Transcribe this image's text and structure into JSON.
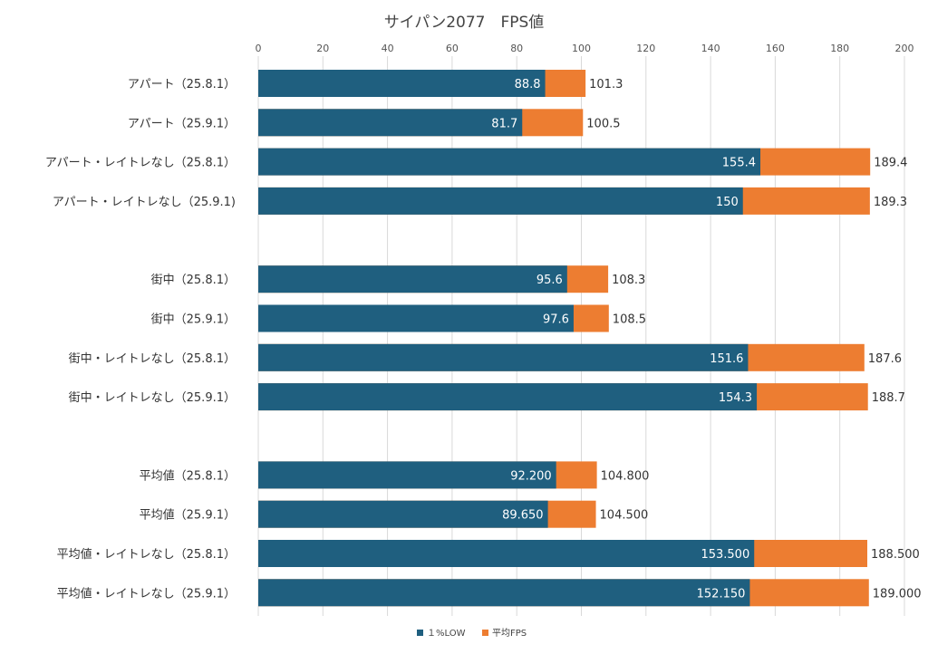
{
  "chart_data": {
    "type": "bar",
    "orientation": "horizontal",
    "title": "サイパン2077　FPS値",
    "xlabel": "",
    "ylabel": "",
    "xlim": [
      0,
      200
    ],
    "xticks": [
      "0",
      "20",
      "40",
      "60",
      "80",
      "100",
      "120",
      "140",
      "160",
      "180",
      "200"
    ],
    "grid": true,
    "legend_position": "bottom",
    "colors": {
      "low": "#1f5f7f",
      "avg": "#ed7d31",
      "grid": "#d9d9d9"
    },
    "legend": [
      {
        "key": "low",
        "label": "１%LOW"
      },
      {
        "key": "avg",
        "label": "平均FPS"
      }
    ],
    "groups": [
      {
        "rows": [
          {
            "category": "アパート（25.8.1）",
            "low": 88.8,
            "avg": 101.3,
            "low_label": "88.8",
            "avg_label": "101.3"
          },
          {
            "category": "アパート（25.9.1）",
            "low": 81.7,
            "avg": 100.5,
            "low_label": "81.7",
            "avg_label": "100.5"
          },
          {
            "category": "アパート・レイトレなし（25.8.1）",
            "low": 155.4,
            "avg": 189.4,
            "low_label": "155.4",
            "avg_label": "189.4"
          },
          {
            "category": "アパート・レイトレなし（25.9.1)",
            "low": 150,
            "avg": 189.3,
            "low_label": "150",
            "avg_label": "189.3"
          }
        ]
      },
      {
        "rows": [
          {
            "category": "街中（25.8.1）",
            "low": 95.6,
            "avg": 108.3,
            "low_label": "95.6",
            "avg_label": "108.3"
          },
          {
            "category": "街中（25.9.1）",
            "low": 97.6,
            "avg": 108.5,
            "low_label": "97.6",
            "avg_label": "108.5"
          },
          {
            "category": "街中・レイトレなし（25.8.1）",
            "low": 151.6,
            "avg": 187.6,
            "low_label": "151.6",
            "avg_label": "187.6"
          },
          {
            "category": "街中・レイトレなし（25.9.1）",
            "low": 154.3,
            "avg": 188.7,
            "low_label": "154.3",
            "avg_label": "188.7"
          }
        ]
      },
      {
        "rows": [
          {
            "category": "平均値（25.8.1）",
            "low": 92.2,
            "avg": 104.8,
            "low_label": "92.200",
            "avg_label": "104.800"
          },
          {
            "category": "平均値（25.9.1）",
            "low": 89.65,
            "avg": 104.5,
            "low_label": "89.650",
            "avg_label": "104.500"
          },
          {
            "category": "平均値・レイトレなし（25.8.1）",
            "low": 153.5,
            "avg": 188.5,
            "low_label": "153.500",
            "avg_label": "188.500"
          },
          {
            "category": "平均値・レイトレなし（25.9.1）",
            "low": 152.15,
            "avg": 189.0,
            "low_label": "152.150",
            "avg_label": "189.000"
          }
        ]
      }
    ]
  }
}
